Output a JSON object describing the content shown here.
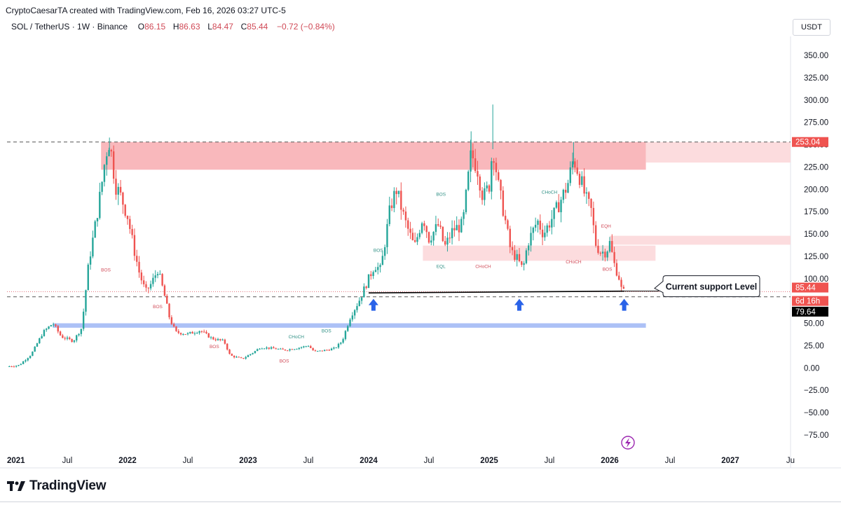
{
  "header": {
    "credit": "CryptoCaesarTA created with TradingView.com, Feb 16, 2026 03:27 UTC-5",
    "symbol": "SOL / TetherUS · 1W · Binance",
    "open_label": "O",
    "open": "86.15",
    "high_label": "H",
    "high": "86.63",
    "low_label": "L",
    "low": "84.47",
    "close_label": "C",
    "close": "85.44",
    "change": "−0.72 (−0.84%)",
    "currency": "USDT"
  },
  "footer": {
    "brand": "TradingView"
  },
  "colors": {
    "up": "#26a69a",
    "down": "#ef5350",
    "zone": "#f7a0a6",
    "zone_light": "#fcd6d8",
    "support_blue": "#9db6f5",
    "arrow": "#2a63e8"
  },
  "chart_data": {
    "type": "candlestick",
    "title": "SOL / TetherUS · 1W · Binance",
    "ylabel": "USDT",
    "ylim": [
      -90,
      365
    ],
    "y_ticks": [
      "350.00",
      "325.00",
      "300.00",
      "275.00",
      "250.00",
      "225.00",
      "200.00",
      "175.00",
      "150.00",
      "125.00",
      "100.00",
      "75.00",
      "50.00",
      "25.00",
      "0.00",
      "−25.00",
      "−50.00",
      "−75.00"
    ],
    "y_tick_values": [
      350,
      325,
      300,
      275,
      250,
      225,
      200,
      175,
      150,
      125,
      100,
      75,
      50,
      25,
      0,
      -25,
      -50,
      -75
    ],
    "x_ticks": [
      {
        "label": "2021",
        "t": 2021.0,
        "bold": true
      },
      {
        "label": "Jul",
        "t": 2021.5,
        "bold": false
      },
      {
        "label": "2022",
        "t": 2022.0,
        "bold": true
      },
      {
        "label": "Jul",
        "t": 2022.5,
        "bold": false
      },
      {
        "label": "2023",
        "t": 2023.0,
        "bold": true
      },
      {
        "label": "Jul",
        "t": 2023.5,
        "bold": false
      },
      {
        "label": "2024",
        "t": 2024.0,
        "bold": true
      },
      {
        "label": "Jul",
        "t": 2024.5,
        "bold": false
      },
      {
        "label": "2025",
        "t": 2025.0,
        "bold": true
      },
      {
        "label": "Jul",
        "t": 2025.5,
        "bold": false
      },
      {
        "label": "2026",
        "t": 2026.0,
        "bold": true
      },
      {
        "label": "Jul",
        "t": 2026.5,
        "bold": false
      },
      {
        "label": "2027",
        "t": 2027.0,
        "bold": true
      },
      {
        "label": "Ju",
        "t": 2027.5,
        "bold": false
      }
    ],
    "price_path": [
      [
        2021.0,
        1.5
      ],
      [
        2021.1,
        3
      ],
      [
        2021.2,
        15
      ],
      [
        2021.3,
        40
      ],
      [
        2021.38,
        50
      ],
      [
        2021.45,
        35
      ],
      [
        2021.55,
        30
      ],
      [
        2021.62,
        45
      ],
      [
        2021.68,
        120
      ],
      [
        2021.72,
        150
      ],
      [
        2021.78,
        200
      ],
      [
        2021.82,
        240
      ],
      [
        2021.85,
        255
      ],
      [
        2021.9,
        205
      ],
      [
        2021.95,
        190
      ],
      [
        2022.0,
        170
      ],
      [
        2022.05,
        135
      ],
      [
        2022.1,
        105
      ],
      [
        2022.15,
        85
      ],
      [
        2022.2,
        95
      ],
      [
        2022.25,
        110
      ],
      [
        2022.3,
        85
      ],
      [
        2022.35,
        55
      ],
      [
        2022.4,
        40
      ],
      [
        2022.5,
        38
      ],
      [
        2022.6,
        42
      ],
      [
        2022.7,
        33
      ],
      [
        2022.8,
        30
      ],
      [
        2022.85,
        14
      ],
      [
        2022.95,
        10
      ],
      [
        2023.05,
        18
      ],
      [
        2023.1,
        23
      ],
      [
        2023.2,
        22
      ],
      [
        2023.3,
        20
      ],
      [
        2023.4,
        22
      ],
      [
        2023.5,
        25
      ],
      [
        2023.55,
        18
      ],
      [
        2023.65,
        20
      ],
      [
        2023.72,
        22
      ],
      [
        2023.78,
        30
      ],
      [
        2023.85,
        58
      ],
      [
        2023.92,
        75
      ],
      [
        2024.0,
        100
      ],
      [
        2024.05,
        115
      ],
      [
        2024.1,
        110
      ],
      [
        2024.18,
        180
      ],
      [
        2024.23,
        200
      ],
      [
        2024.3,
        165
      ],
      [
        2024.38,
        135
      ],
      [
        2024.45,
        170
      ],
      [
        2024.5,
        145
      ],
      [
        2024.58,
        160
      ],
      [
        2024.63,
        135
      ],
      [
        2024.7,
        155
      ],
      [
        2024.78,
        160
      ],
      [
        2024.85,
        240
      ],
      [
        2024.9,
        225
      ],
      [
        2024.95,
        190
      ],
      [
        2025.0,
        205
      ],
      [
        2025.03,
        250
      ],
      [
        2025.08,
        200
      ],
      [
        2025.12,
        175
      ],
      [
        2025.18,
        130
      ],
      [
        2025.22,
        125
      ],
      [
        2025.28,
        110
      ],
      [
        2025.32,
        140
      ],
      [
        2025.4,
        165
      ],
      [
        2025.45,
        150
      ],
      [
        2025.55,
        175
      ],
      [
        2025.6,
        190
      ],
      [
        2025.65,
        205
      ],
      [
        2025.7,
        235
      ],
      [
        2025.75,
        215
      ],
      [
        2025.8,
        190
      ],
      [
        2025.85,
        175
      ],
      [
        2025.88,
        140
      ],
      [
        2025.92,
        130
      ],
      [
        2025.97,
        130
      ],
      [
        2026.0,
        140
      ],
      [
        2026.04,
        115
      ],
      [
        2026.08,
        100
      ],
      [
        2026.1,
        86
      ],
      [
        2026.12,
        85.44
      ]
    ],
    "zones": [
      {
        "t0": 2021.78,
        "t1": 2026.3,
        "y0": 222,
        "y1": 253,
        "style": "zone"
      },
      {
        "t0": 2026.3,
        "t1": 2027.5,
        "y0": 230,
        "y1": 253,
        "style": "zone_light"
      },
      {
        "t0": 2024.45,
        "t1": 2026.38,
        "y0": 120,
        "y1": 137,
        "style": "zone_light"
      },
      {
        "t0": 2026.0,
        "t1": 2027.5,
        "y0": 138,
        "y1": 148,
        "style": "zone_light"
      },
      {
        "t0": 2021.38,
        "t1": 2026.3,
        "y0": 45,
        "y1": 50,
        "style": "support_blue"
      }
    ],
    "horizontal_lines": [
      {
        "y": 253.04,
        "t0": 2021.0,
        "t1": 2027.5,
        "style": "dashed"
      },
      {
        "y": 79.64,
        "t0": 2021.0,
        "t1": 2027.5,
        "style": "dashed"
      },
      {
        "y": 85.44,
        "t0": 2021.0,
        "t1": 2027.5,
        "style": "dotted_red"
      }
    ],
    "support_line": {
      "t0": 2024.0,
      "t1": 2026.12,
      "y0": 84,
      "y1": 86
    },
    "callout": "Current support Level",
    "price_labels": [
      {
        "text": "253.04",
        "y": 253.04,
        "style": "red"
      },
      {
        "text": "85.44",
        "y": 90,
        "style": "red"
      },
      {
        "text": "6d 16h",
        "y": 75,
        "style": "red"
      },
      {
        "text": "79.64",
        "y": 63,
        "style": "black"
      }
    ],
    "markers": [
      {
        "text": "BOS",
        "t": 2021.82,
        "y": 108,
        "color": "down"
      },
      {
        "text": "BOS",
        "t": 2022.25,
        "y": 67,
        "color": "down"
      },
      {
        "text": "BOS",
        "t": 2022.72,
        "y": 22,
        "color": "down"
      },
      {
        "text": "BOS",
        "t": 2023.3,
        "y": 6,
        "color": "down"
      },
      {
        "text": "CHoCH",
        "t": 2023.4,
        "y": 33,
        "color": "up"
      },
      {
        "text": "BOS",
        "t": 2023.65,
        "y": 40,
        "color": "up"
      },
      {
        "text": "BOS",
        "t": 2024.08,
        "y": 130,
        "color": "up"
      },
      {
        "text": "BOS",
        "t": 2024.6,
        "y": 193,
        "color": "up"
      },
      {
        "text": "EQL",
        "t": 2024.6,
        "y": 112,
        "color": "up"
      },
      {
        "text": "CHoCH",
        "t": 2024.95,
        "y": 112,
        "color": "down"
      },
      {
        "text": "CHoCH",
        "t": 2025.5,
        "y": 195,
        "color": "up"
      },
      {
        "text": "CHoCH",
        "t": 2025.7,
        "y": 117,
        "color": "down"
      },
      {
        "text": "EQH",
        "t": 2025.97,
        "y": 157,
        "color": "down"
      },
      {
        "text": "BOS",
        "t": 2025.98,
        "y": 109,
        "color": "down"
      }
    ],
    "up_arrows": [
      {
        "t": 2024.04,
        "y": 79
      },
      {
        "t": 2025.25,
        "y": 79
      },
      {
        "t": 2026.12,
        "y": 79
      }
    ]
  }
}
